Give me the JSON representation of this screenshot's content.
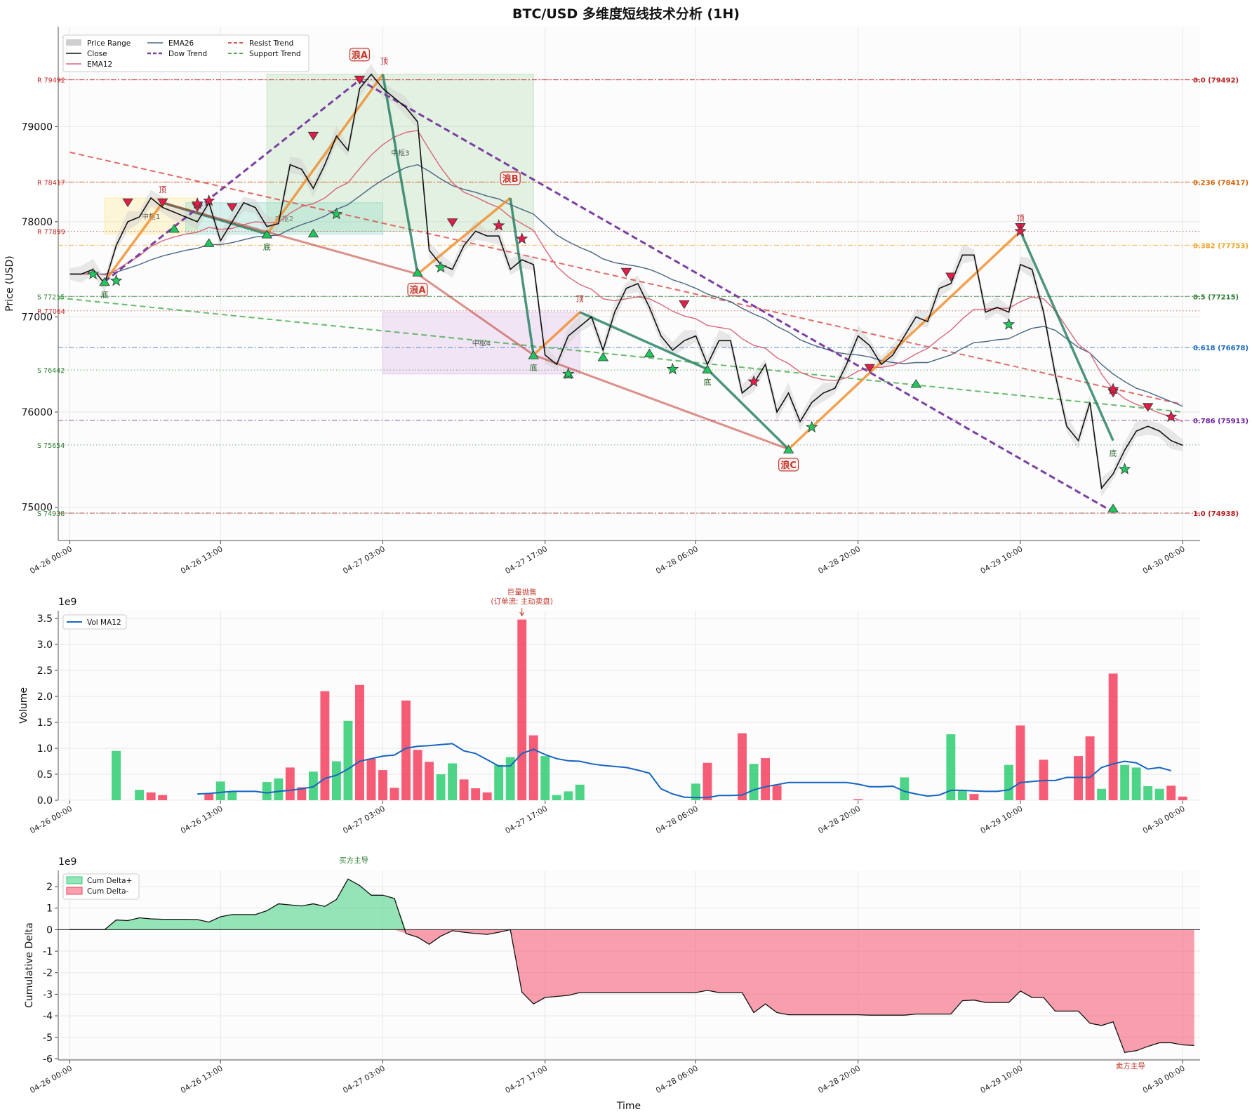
{
  "chart_data": [
    {
      "type": "line",
      "title": "BTC/USD 多维度短线技术分析 (1H)",
      "ylabel": "Price (USD)",
      "ylim": [
        74650,
        80050
      ],
      "xlim": [
        -1,
        97.5
      ],
      "grid": true,
      "legend_position": "top-left",
      "x_ticks": [
        {
          "i": 0,
          "label": "04-26 00:00"
        },
        {
          "i": 13,
          "label": "04-26 13:00"
        },
        {
          "i": 27,
          "label": "04-27 03:00"
        },
        {
          "i": 41,
          "label": "04-27 17:00"
        },
        {
          "i": 54,
          "label": "04-28 06:00"
        },
        {
          "i": 68,
          "label": "04-28 20:00"
        },
        {
          "i": 82,
          "label": "04-29 10:00"
        },
        {
          "i": 96,
          "label": "04-30 00:00"
        }
      ],
      "y_ticks": [
        75000,
        76000,
        77000,
        78000,
        79000
      ],
      "legend": [
        "Price Range",
        "Close",
        "EMA12",
        "EMA26",
        "Dow Trend",
        "Support Trend",
        "Resist Trend"
      ],
      "close": [
        77450,
        77450,
        77500,
        77350,
        77750,
        78000,
        78050,
        78250,
        78150,
        78100,
        78050,
        78000,
        78200,
        77800,
        78000,
        78200,
        78150,
        77950,
        77980,
        78600,
        78550,
        78350,
        78600,
        78900,
        78750,
        79400,
        79550,
        79400,
        79300,
        79200,
        79050,
        77700,
        77550,
        77500,
        77750,
        77900,
        77850,
        77850,
        77500,
        77600,
        77550,
        76600,
        76500,
        76800,
        76900,
        77000,
        76650,
        77050,
        77300,
        77350,
        77100,
        76800,
        76650,
        76750,
        76800,
        76500,
        76750,
        76750,
        76200,
        76300,
        76500,
        76000,
        76200,
        75900,
        76100,
        76200,
        76250,
        76500,
        76800,
        76700,
        76500,
        76600,
        76800,
        77000,
        76950,
        77300,
        77350,
        77650,
        77650,
        77050,
        77100,
        77050,
        77550,
        77500,
        77050,
        76400,
        75850,
        75700,
        76100,
        75200,
        75350,
        75600,
        75800,
        75850,
        75800,
        75700,
        75650
      ],
      "ema12": [
        77450,
        77450,
        77460,
        77440,
        77490,
        77570,
        77640,
        77740,
        77800,
        77840,
        77870,
        77890,
        77940,
        77920,
        77930,
        77970,
        78000,
        77990,
        77990,
        78090,
        78160,
        78190,
        78250,
        78350,
        78410,
        78560,
        78700,
        78810,
        78890,
        78940,
        78960,
        78760,
        78570,
        78410,
        78310,
        78260,
        78200,
        78150,
        78050,
        77980,
        77910,
        77710,
        77530,
        77420,
        77340,
        77290,
        77190,
        77170,
        77190,
        77210,
        77190,
        77130,
        77060,
        77010,
        76980,
        76910,
        76890,
        76870,
        76770,
        76700,
        76670,
        76570,
        76510,
        76420,
        76370,
        76340,
        76330,
        76360,
        76430,
        76470,
        76470,
        76490,
        76540,
        76610,
        76670,
        76770,
        76860,
        76980,
        77080,
        77080,
        77090,
        77090,
        77160,
        77210,
        77190,
        77070,
        76890,
        76710,
        76620,
        76400,
        76240,
        76140,
        76080,
        76040,
        75990,
        75950,
        75900
      ],
      "ema26": [
        77450,
        77450,
        77450,
        77450,
        77470,
        77510,
        77550,
        77600,
        77640,
        77670,
        77700,
        77720,
        77760,
        77760,
        77780,
        77810,
        77840,
        77850,
        77860,
        77920,
        77970,
        78010,
        78060,
        78130,
        78180,
        78270,
        78360,
        78440,
        78510,
        78570,
        78600,
        78530,
        78450,
        78380,
        78340,
        78310,
        78270,
        78240,
        78180,
        78130,
        78080,
        77970,
        77860,
        77790,
        77730,
        77680,
        77610,
        77570,
        77550,
        77530,
        77500,
        77450,
        77390,
        77350,
        77300,
        77240,
        77200,
        77160,
        77090,
        77030,
        76980,
        76900,
        76840,
        76760,
        76710,
        76670,
        76630,
        76610,
        76600,
        76580,
        76540,
        76520,
        76510,
        76520,
        76520,
        76560,
        76600,
        76670,
        76730,
        76740,
        76760,
        76770,
        76830,
        76880,
        76900,
        76860,
        76770,
        76680,
        76620,
        76500,
        76400,
        76320,
        76250,
        76210,
        76160,
        76110,
        76060
      ],
      "volume": [
        0,
        0,
        0,
        0,
        0.95,
        0,
        0.2,
        0.15,
        0.1,
        0,
        0,
        0,
        0.12,
        0.36,
        0.17,
        0,
        0,
        0.35,
        0.42,
        0.63,
        0.25,
        0.55,
        2.1,
        0.75,
        1.53,
        2.22,
        0.8,
        0.58,
        0.24,
        1.92,
        0.97,
        0.74,
        0.5,
        0.71,
        0.4,
        0.23,
        0.15,
        0.68,
        0.83,
        3.48,
        1.25,
        0.85,
        0.1,
        0.17,
        0.3,
        0,
        0,
        0,
        0,
        0,
        0,
        0,
        0,
        0,
        0.32,
        0.72,
        0,
        0,
        1.29,
        0.7,
        0.81,
        0.29,
        0,
        0,
        0,
        0,
        0,
        0,
        0.02,
        0,
        0,
        0,
        0.44,
        0,
        0,
        0,
        1.27,
        0.18,
        0.12,
        0,
        0,
        0.68,
        1.44,
        0,
        0.78,
        0,
        0,
        0.85,
        1.23,
        0.22,
        2.44,
        0.68,
        0.63,
        0.27,
        0.22,
        0.28,
        0.07
      ],
      "volume_up": [
        false,
        false,
        false,
        false,
        true,
        false,
        true,
        false,
        false,
        false,
        false,
        false,
        false,
        true,
        true,
        false,
        false,
        true,
        true,
        false,
        false,
        true,
        false,
        true,
        true,
        false,
        false,
        false,
        false,
        false,
        false,
        false,
        true,
        true,
        false,
        false,
        false,
        true,
        true,
        false,
        false,
        true,
        true,
        true,
        true,
        false,
        false,
        false,
        false,
        false,
        false,
        false,
        false,
        false,
        true,
        false,
        false,
        false,
        false,
        true,
        false,
        false,
        false,
        false,
        false,
        false,
        false,
        false,
        false,
        false,
        false,
        false,
        true,
        false,
        false,
        false,
        true,
        true,
        false,
        false,
        false,
        true,
        false,
        false,
        false,
        false,
        false,
        false,
        false,
        true,
        false,
        true,
        true,
        true,
        true,
        false,
        false
      ],
      "volume_unit_note": "1e9",
      "volume_ma12": [
        null,
        null,
        null,
        null,
        null,
        null,
        null,
        null,
        null,
        null,
        null,
        0.12,
        0.13,
        0.15,
        0.17,
        0.17,
        0.17,
        0.14,
        0.17,
        0.19,
        0.22,
        0.26,
        0.42,
        0.48,
        0.6,
        0.75,
        0.8,
        0.85,
        0.87,
        1.0,
        1.04,
        1.05,
        1.07,
        1.09,
        0.95,
        0.9,
        0.78,
        0.66,
        0.66,
        0.9,
        0.98,
        0.88,
        0.8,
        0.76,
        0.75,
        0.7,
        0.67,
        0.65,
        0.63,
        0.58,
        0.52,
        0.22,
        0.12,
        0.06,
        0.05,
        0.05,
        0.09,
        0.09,
        0.1,
        0.2,
        0.26,
        0.3,
        0.34,
        0.34,
        0.34,
        0.34,
        0.34,
        0.34,
        0.31,
        0.26,
        0.26,
        0.27,
        0.17,
        0.12,
        0.08,
        0.1,
        0.19,
        0.19,
        0.18,
        0.17,
        0.17,
        0.2,
        0.34,
        0.36,
        0.38,
        0.38,
        0.44,
        0.44,
        0.44,
        0.63,
        0.7,
        0.75,
        0.72,
        0.6,
        0.63,
        0.57
      ],
      "cum_delta": [
        0,
        0,
        0,
        0,
        0.45,
        0.42,
        0.55,
        0.5,
        0.48,
        0.48,
        0.48,
        0.47,
        0.35,
        0.6,
        0.7,
        0.7,
        0.7,
        0.88,
        1.2,
        1.15,
        1.1,
        1.2,
        1.08,
        1.4,
        2.35,
        2.05,
        1.6,
        1.6,
        1.45,
        -0.18,
        -0.35,
        -0.68,
        -0.3,
        -0.05,
        -0.12,
        -0.18,
        -0.22,
        -0.12,
        0,
        -2.9,
        -3.45,
        -3.15,
        -3.1,
        -3.05,
        -2.92,
        -2.92,
        -2.92,
        -2.92,
        -2.92,
        -2.92,
        -2.92,
        -2.92,
        -2.92,
        -2.92,
        -2.92,
        -2.82,
        -2.92,
        -2.92,
        -2.92,
        -3.85,
        -3.45,
        -3.85,
        -3.95,
        -3.95,
        -3.95,
        -3.95,
        -3.95,
        -3.95,
        -3.95,
        -3.97,
        -3.97,
        -3.97,
        -3.97,
        -3.92,
        -3.92,
        -3.92,
        -3.92,
        -3.3,
        -3.27,
        -3.38,
        -3.38,
        -3.38,
        -2.85,
        -3.15,
        -3.15,
        -3.78,
        -3.78,
        -3.78,
        -4.35,
        -4.45,
        -4.28,
        -5.7,
        -5.62,
        -5.42,
        -5.25,
        -5.25,
        -5.35,
        -5.38
      ],
      "fib_levels": [
        {
          "label": "0.0 (79492)",
          "price": 79492,
          "color": "#b71c1c"
        },
        {
          "label": "0.236 (78417)",
          "price": 78417,
          "color": "#d55e00"
        },
        {
          "label": "0.382 (77753)",
          "price": 77753,
          "color": "#f0a020"
        },
        {
          "label": "0.5 (77215)",
          "price": 77215,
          "color": "#2e7d32"
        },
        {
          "label": "0.618 (76678)",
          "price": 76678,
          "color": "#1565c0"
        },
        {
          "label": "0.786 (75913)",
          "price": 75913,
          "color": "#6a1b9a"
        },
        {
          "label": "1.0 (74938)",
          "price": 74938,
          "color": "#b71c1c"
        }
      ],
      "sr_levels": [
        {
          "label": "R 79492",
          "price": 79492,
          "kind": "R"
        },
        {
          "label": "R 78417",
          "price": 78417,
          "kind": "R"
        },
        {
          "label": "R 77899",
          "price": 77899,
          "kind": "R"
        },
        {
          "label": "S 77215",
          "price": 77215,
          "kind": "S"
        },
        {
          "label": "R 77064",
          "price": 77064,
          "kind": "R"
        },
        {
          "label": "S 76442",
          "price": 76442,
          "kind": "S"
        },
        {
          "label": "S 75654",
          "price": 75654,
          "kind": "S"
        },
        {
          "label": "S 74938",
          "price": 74938,
          "kind": "S"
        }
      ],
      "pivot_zones": [
        {
          "label": "中枢1",
          "x0": 3,
          "x1": 11,
          "y0": 77870,
          "y1": 78250,
          "color": "#ffe680"
        },
        {
          "label": "中枢2",
          "x0": 10,
          "x1": 27,
          "y0": 77870,
          "y1": 78200,
          "color": "#7fd6c8"
        },
        {
          "label": "中枢3",
          "x0": 17,
          "x1": 40,
          "y0": 77900,
          "y1": 79550,
          "color": "#a5d6a7"
        },
        {
          "label": "中枢4",
          "x0": 27,
          "x1": 44,
          "y0": 76400,
          "y1": 77050,
          "color": "#d7b0e6"
        }
      ],
      "zigzag": [
        [
          3,
          77370
        ],
        [
          8,
          78200
        ],
        [
          17,
          77870
        ],
        [
          27,
          79550
        ],
        [
          30,
          77450
        ],
        [
          38,
          78250
        ],
        [
          40,
          76600
        ],
        [
          44,
          77050
        ],
        [
          55,
          76450
        ],
        [
          62,
          75610
        ],
        [
          82,
          77900
        ],
        [
          90,
          75700
        ]
      ],
      "dow_trend": [
        [
          3,
          77370
        ],
        [
          25,
          79490
        ],
        [
          90,
          74950
        ]
      ],
      "resist_trend": [
        [
          0,
          78730
        ],
        [
          96,
          76080
        ]
      ],
      "support_trend": [
        [
          -1,
          77200
        ],
        [
          96,
          76000
        ]
      ],
      "annotations": [
        {
          "text": "浪A",
          "x": 25,
          "y": 79550,
          "kind": "wave"
        },
        {
          "text": "浪A",
          "x": 30,
          "y": 77450,
          "kind": "wave"
        },
        {
          "text": "浪B",
          "x": 38,
          "y": 78250,
          "kind": "wave"
        },
        {
          "text": "浪C",
          "x": 62,
          "y": 75610,
          "kind": "wave"
        },
        {
          "text": "顶",
          "x": 8,
          "y": 78200,
          "kind": "top"
        },
        {
          "text": "顶",
          "x": 27,
          "y": 79550,
          "kind": "top"
        },
        {
          "text": "顶",
          "x": 44,
          "y": 77050,
          "kind": "top"
        },
        {
          "text": "顶",
          "x": 82,
          "y": 77900,
          "kind": "top"
        },
        {
          "text": "底",
          "x": 3,
          "y": 77370,
          "kind": "bottom"
        },
        {
          "text": "底",
          "x": 17,
          "y": 77870,
          "kind": "bottom"
        },
        {
          "text": "底",
          "x": 40,
          "y": 76600,
          "kind": "bottom"
        },
        {
          "text": "底",
          "x": 55,
          "y": 76450,
          "kind": "bottom"
        },
        {
          "text": "底",
          "x": 90,
          "y": 75700,
          "kind": "bottom"
        }
      ],
      "markers": {
        "sell_tri": [
          [
            5,
            78200
          ],
          [
            8,
            78200
          ],
          [
            11,
            78150
          ],
          [
            14,
            78150
          ],
          [
            21,
            78900
          ],
          [
            25,
            79490
          ],
          [
            33,
            77990
          ],
          [
            48,
            77470
          ],
          [
            53,
            77130
          ],
          [
            69,
            76460
          ],
          [
            76,
            77420
          ],
          [
            82,
            77940
          ],
          [
            90,
            76200
          ],
          [
            93,
            76050
          ]
        ],
        "buy_tri": [
          [
            3,
            77370
          ],
          [
            9,
            77930
          ],
          [
            12,
            77780
          ],
          [
            17,
            77870
          ],
          [
            21,
            77880
          ],
          [
            30,
            77470
          ],
          [
            40,
            76600
          ],
          [
            43,
            76400
          ],
          [
            46,
            76580
          ],
          [
            50,
            76620
          ],
          [
            55,
            76450
          ],
          [
            62,
            75610
          ],
          [
            73,
            76300
          ],
          [
            90,
            74990
          ]
        ],
        "buy_star": [
          [
            2,
            77450
          ],
          [
            4,
            77380
          ],
          [
            23,
            78080
          ],
          [
            32,
            77520
          ],
          [
            43,
            76400
          ],
          [
            52,
            76450
          ],
          [
            64,
            75840
          ],
          [
            81,
            76920
          ],
          [
            91,
            75400
          ]
        ],
        "sell_star": [
          [
            12,
            78220
          ],
          [
            11,
            78190
          ],
          [
            37,
            77960
          ],
          [
            39,
            77820
          ],
          [
            59,
            76320
          ],
          [
            82,
            77900
          ],
          [
            90,
            76240
          ],
          [
            95,
            75950
          ]
        ]
      }
    },
    {
      "type": "bar",
      "ylabel": "Volume",
      "y_offset_label": "1e9",
      "ylim": [
        0,
        3.65
      ],
      "y_ticks": [
        "0.0",
        "0.5",
        "1.0",
        "1.5",
        "2.0",
        "2.5",
        "3.0",
        "3.5"
      ],
      "legend": [
        "Vol MA12"
      ],
      "annotation_line1": "巨量抛售",
      "annotation_line2": "(订单流: 主动卖盘)"
    },
    {
      "type": "area",
      "xlabel": "Time",
      "ylabel": "Cumulative Delta",
      "y_offset_label": "1e9",
      "ylim": [
        -6.05,
        2.75
      ],
      "y_ticks": [
        "2",
        "1",
        "0",
        "-1",
        "-2",
        "-3",
        "-4",
        "-5",
        "-6"
      ],
      "legend": [
        "Cum Delta+",
        "Cum Delta-"
      ],
      "note_buy": "买方主导",
      "note_sell": "卖方主导"
    }
  ]
}
